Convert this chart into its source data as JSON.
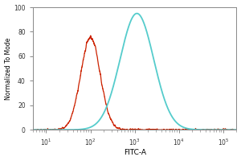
{
  "title": "",
  "xlabel": "FITC-A",
  "ylabel": "Normalized To Mode",
  "ylim": [
    0,
    100
  ],
  "yticks": [
    0,
    20,
    40,
    60,
    80,
    100
  ],
  "xlim": [
    5,
    200000
  ],
  "background_color": "#ffffff",
  "plot_bg_color": "#ffffff",
  "red_color": "#cc2200",
  "blue_color": "#55cccc",
  "red_peak_log": 2.0,
  "red_peak_height": 75,
  "red_sigma_log": 0.22,
  "blue_peak_log": 3.05,
  "blue_peak_height": 95,
  "blue_sigma_log": 0.38,
  "noise_seed": 42
}
